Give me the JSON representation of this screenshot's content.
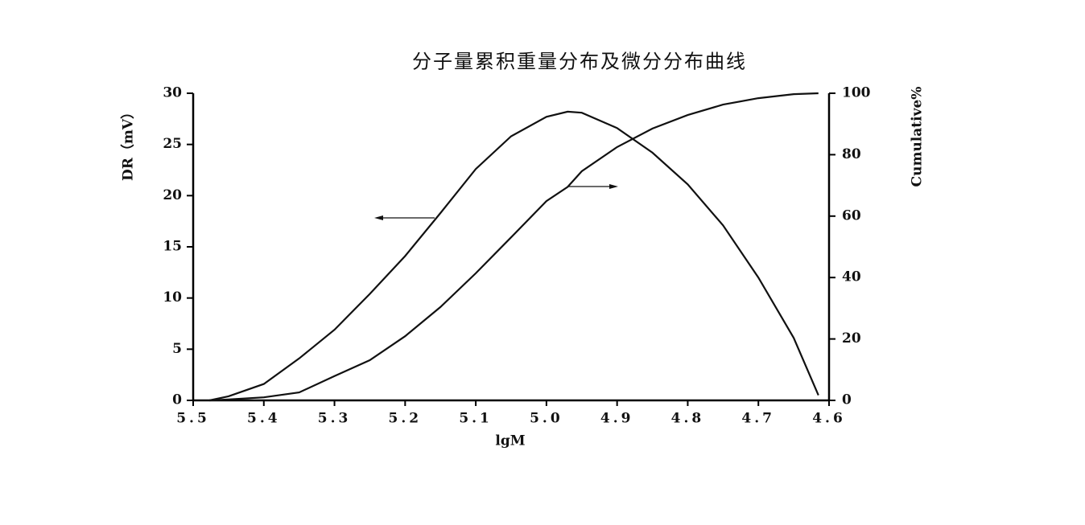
{
  "chart_data": {
    "type": "line",
    "title": "分子量累积重量分布及微分分布曲线",
    "x_label": "lgM",
    "y_label": "DR（mV）",
    "y2_label": "Cumulative%",
    "x": [
      5.477,
      5.45,
      5.4,
      5.35,
      5.3,
      5.25,
      5.2,
      5.15,
      5.1,
      5.05,
      5.0,
      4.97,
      4.95,
      4.9,
      4.85,
      4.8,
      4.75,
      4.7,
      4.65,
      4.615
    ],
    "series": [
      {
        "color": "#111111",
        "values": [
          0,
          0.4,
          1.6,
          4.1,
          6.9,
          10.4,
          14.1,
          18.3,
          22.6,
          25.8,
          27.7,
          28.2,
          28.1,
          26.6,
          24.2,
          21.1,
          17.1,
          12.0,
          6.1,
          0.5
        ]
      },
      {
        "color": "#111111",
        "axis": "y2",
        "values": [
          0,
          0.3,
          1,
          2.6,
          7.9,
          13.1,
          20.9,
          30.4,
          41.4,
          53.1,
          64.9,
          69.5,
          74.6,
          82.5,
          88.5,
          92.9,
          96.3,
          98.4,
          99.7,
          100
        ]
      }
    ],
    "xlim": [
      5.5,
      4.6
    ],
    "xticks": [
      5.5,
      5.4,
      5.3,
      5.2,
      5.1,
      {
        "value": 5,
        "label": "5.0"
      },
      4.9,
      4.8,
      4.7,
      4.6
    ],
    "ylim": [
      0,
      30
    ],
    "yticks": [
      0,
      5,
      10,
      15,
      20,
      25,
      30
    ],
    "y2lim": [
      0,
      100
    ],
    "y2ticks": [
      0,
      20,
      40,
      60,
      80,
      100
    ]
  }
}
